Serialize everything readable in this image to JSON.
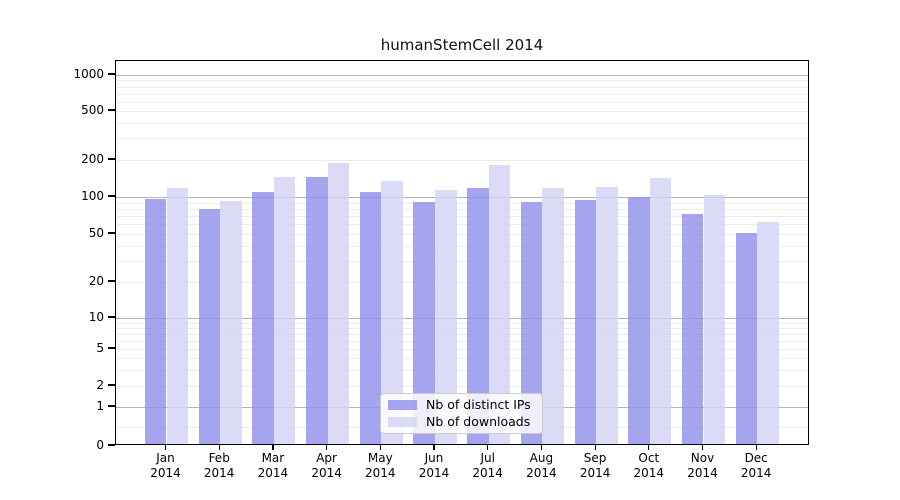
{
  "title": "humanStemCell 2014",
  "chart_data": {
    "type": "bar",
    "title": "humanStemCell 2014",
    "categories": [
      "Jan",
      "Feb",
      "Mar",
      "Apr",
      "May",
      "Jun",
      "Jul",
      "Aug",
      "Sep",
      "Oct",
      "Nov",
      "Dec"
    ],
    "category_year": "2014",
    "series": [
      {
        "name": "Nb of distinct IPs",
        "color": "#a4a4ef",
        "fill": "rgba(141,141,235,0.8)",
        "values": [
          93,
          77,
          105,
          139,
          105,
          87,
          115,
          88,
          91,
          96,
          70,
          49
        ]
      },
      {
        "name": "Nb of downloads",
        "color": "#dbdbf8",
        "fill": "rgba(210,210,246,0.8)",
        "values": [
          114,
          90,
          141,
          181,
          130,
          110,
          176,
          113,
          116,
          138,
          100,
          60
        ]
      }
    ],
    "yscale": "symlog",
    "yticks": [
      0,
      1,
      2,
      5,
      10,
      20,
      50,
      100,
      200,
      500,
      1000
    ],
    "ylim": [
      0,
      1500
    ],
    "grid": "horizontal, major and minor, on",
    "legend_position": "lower center inside plot",
    "bar_style": "paired, semi-transparent, no edge"
  }
}
